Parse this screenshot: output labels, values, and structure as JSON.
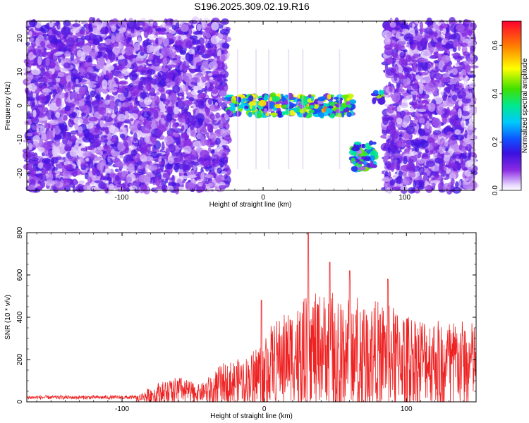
{
  "title": "S196.2025.309.02.19.R16",
  "chart_data": [
    {
      "type": "heatmap",
      "name": "spectrogram",
      "xlabel": "Height of straight line (km)",
      "ylabel": "Frequency (Hz)",
      "xlim": [
        -167,
        149
      ],
      "ylim": [
        -25,
        25
      ],
      "xticks": [
        -100,
        0,
        100
      ],
      "xtick_labels": [
        "-100",
        "0",
        "100"
      ],
      "yticks": [
        -20,
        -10,
        0,
        10,
        20
      ],
      "ytick_labels": [
        "-20",
        "-10",
        "0",
        "10",
        "20"
      ],
      "colorbar": {
        "label": "Normalized spectral amplitude",
        "range": [
          0,
          0.7
        ],
        "ticks": [
          0,
          0.2,
          0.4,
          0.6
        ],
        "tick_labels": [
          "0.0",
          "0.2",
          "0.4",
          "0.6"
        ]
      },
      "regions": [
        {
          "description": "broadband noise",
          "x_range": [
            -167,
            -25
          ],
          "y_range": [
            -25,
            25
          ],
          "level": 0.1
        },
        {
          "description": "carrier tone",
          "x_range": [
            -25,
            64
          ],
          "y_range": [
            -3,
            3
          ],
          "level": 0.35,
          "peak": 0.7,
          "peak_x": 43,
          "peak_y": -1
        },
        {
          "description": "sideband",
          "x_range": [
            63,
            79
          ],
          "y_range": [
            -19,
            -11
          ],
          "level": 0.3
        },
        {
          "description": "tone",
          "x_range": [
            78,
            86
          ],
          "y_range": [
            1,
            4
          ],
          "level": 0.3
        },
        {
          "description": "broadband noise",
          "x_range": [
            86,
            149
          ],
          "y_range": [
            -25,
            25
          ],
          "level": 0.1
        }
      ]
    },
    {
      "type": "line",
      "name": "snr",
      "xlabel": "Height of straight line (km)",
      "ylabel": "SNR (10 * v/v)",
      "xlim": [
        -167,
        149
      ],
      "ylim": [
        0,
        800
      ],
      "xticks": [
        -100,
        0,
        100
      ],
      "xtick_labels": [
        "-100",
        "0",
        "100"
      ],
      "yticks": [
        0,
        200,
        400,
        600,
        800
      ],
      "ytick_labels": [
        "0",
        "200",
        "400",
        "600",
        "800"
      ],
      "color": "#ee2222",
      "envelope": [
        {
          "x": -167,
          "y": 30
        },
        {
          "x": -90,
          "y": 30
        },
        {
          "x": -75,
          "y": 90
        },
        {
          "x": -60,
          "y": 120
        },
        {
          "x": -45,
          "y": 80
        },
        {
          "x": -30,
          "y": 180
        },
        {
          "x": -10,
          "y": 220
        },
        {
          "x": 0,
          "y": 330
        },
        {
          "x": 10,
          "y": 400
        },
        {
          "x": 30,
          "y": 500
        },
        {
          "x": 40,
          "y": 520
        },
        {
          "x": 60,
          "y": 520
        },
        {
          "x": 80,
          "y": 480
        },
        {
          "x": 100,
          "y": 430
        },
        {
          "x": 120,
          "y": 400
        },
        {
          "x": 149,
          "y": 380
        }
      ],
      "peaks": [
        {
          "x": -2,
          "y": 480
        },
        {
          "x": 31,
          "y": 800
        },
        {
          "x": 46,
          "y": 660
        },
        {
          "x": 60,
          "y": 620
        },
        {
          "x": 87,
          "y": 580
        }
      ]
    }
  ]
}
